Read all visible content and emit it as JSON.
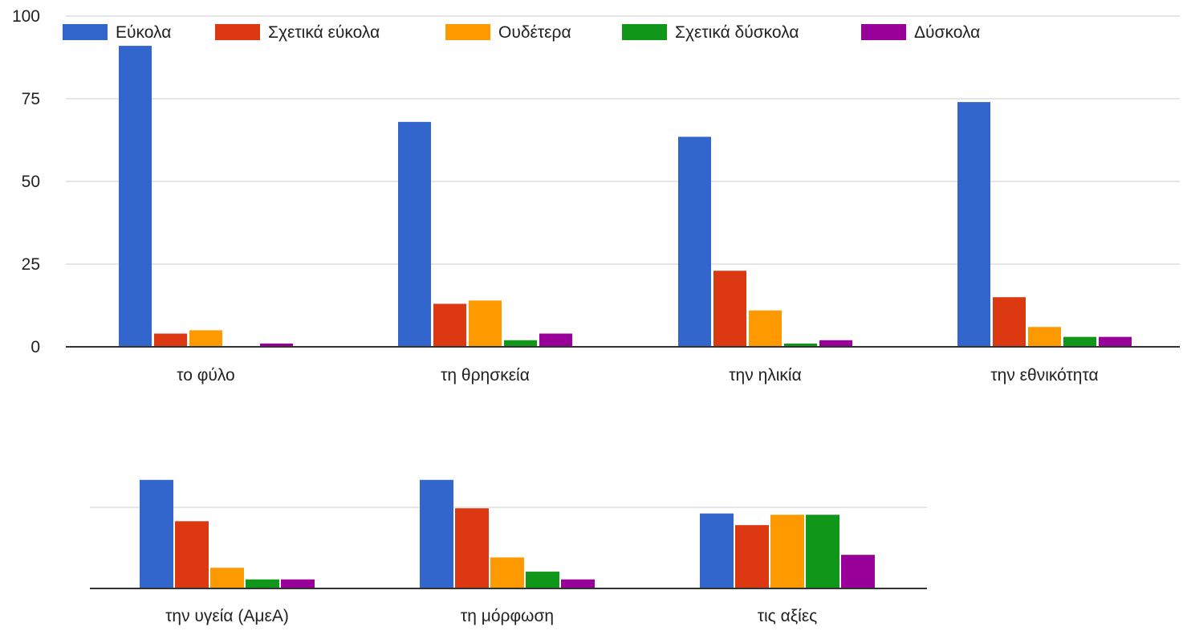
{
  "chart_data": [
    {
      "type": "bar",
      "legend_position": "top",
      "grid": true,
      "ylim": [
        0,
        100
      ],
      "yticks": [
        "0",
        "25",
        "50",
        "75",
        "100"
      ],
      "yticks_values": [
        0,
        25,
        50,
        75,
        100
      ],
      "categories": [
        "το φύλο",
        "τη θρησκεία",
        "την ηλικία",
        "την εθνικότητα"
      ],
      "series": [
        {
          "name": "Εύκολα",
          "color": "#3366cc",
          "values": [
            91,
            68,
            63.5,
            74
          ]
        },
        {
          "name": "Σχετικά εύκολα",
          "color": "#dc3912",
          "values": [
            4,
            13,
            23,
            15
          ]
        },
        {
          "name": "Ουδέτερα",
          "color": "#ff9900",
          "values": [
            5,
            14,
            11,
            6
          ]
        },
        {
          "name": "Σχετικά δύσκολα",
          "color": "#109618",
          "values": [
            0,
            2,
            1,
            3
          ]
        },
        {
          "name": "Δύσκολα",
          "color": "#990099",
          "values": [
            1,
            4,
            2,
            3
          ]
        }
      ]
    },
    {
      "type": "bar",
      "grid": true,
      "ylim": [
        0,
        100
      ],
      "categories": [
        "την υγεία (ΑμεΑ)",
        "τη μόρφωση",
        "τις αξίες"
      ],
      "series": [
        {
          "name": "Εύκολα",
          "color": "#3366cc",
          "values": [
            84,
            84,
            58
          ]
        },
        {
          "name": "Σχετικά εύκολα",
          "color": "#dc3912",
          "values": [
            52,
            62,
            49
          ]
        },
        {
          "name": "Ουδέτερα",
          "color": "#ff9900",
          "values": [
            16,
            24,
            57
          ]
        },
        {
          "name": "Σχετικά δύσκολα",
          "color": "#109618",
          "values": [
            7,
            13,
            57
          ]
        },
        {
          "name": "Δύσκολα",
          "color": "#990099",
          "values": [
            7,
            7,
            26
          ]
        }
      ]
    }
  ]
}
